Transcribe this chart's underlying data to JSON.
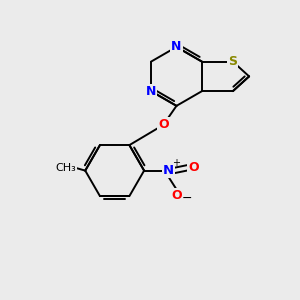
{
  "bg_color": "#ebebeb",
  "atom_colors": {
    "N": "#0000FF",
    "S": "#888800",
    "O": "#FF0000",
    "C": "#000000"
  },
  "bond_color": "#000000",
  "figsize": [
    3.0,
    3.0
  ],
  "dpi": 100,
  "lw": 1.4,
  "fs": 9.0
}
